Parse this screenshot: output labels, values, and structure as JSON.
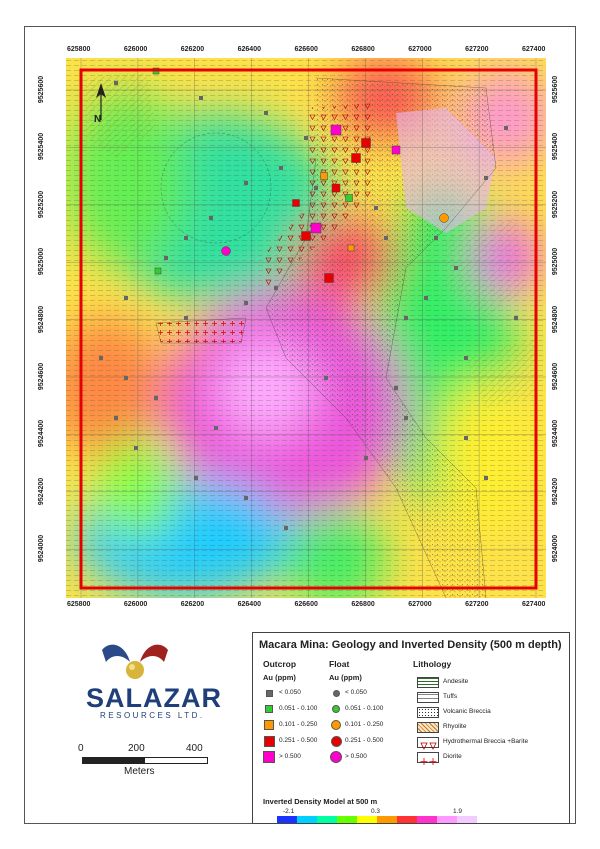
{
  "map": {
    "title": "Macara Mina: Geology and Inverted Density (500 m depth)",
    "x_ticks": [
      "625800",
      "626000",
      "626200",
      "626400",
      "626600",
      "626800",
      "627000",
      "627200",
      "627400"
    ],
    "y_ticks": [
      "9525600",
      "9525400",
      "9525200",
      "9525000",
      "9524800",
      "9524600",
      "9524400",
      "9524200",
      "9524000"
    ],
    "north_label": "N",
    "scale_labels": [
      "0",
      "200",
      "400"
    ],
    "scale_unit": "Meters"
  },
  "logo": {
    "name": "SALAZAR",
    "subtitle": "RESOURCES LTD."
  },
  "legend": {
    "outcrop_header": "Outcrop",
    "float_header": "Float",
    "lithology_header": "Lithology",
    "au_unit": "Au (ppm)",
    "au_classes": [
      {
        "label": "< 0.050",
        "color": "#666666"
      },
      {
        "label": "0.051 - 0.100",
        "color": "#33cc33"
      },
      {
        "label": "0.101 - 0.250",
        "color": "#ff9900"
      },
      {
        "label": "0.251 - 0.500",
        "color": "#e60000"
      },
      {
        "label": "> 0.500",
        "color": "#ff00cc"
      }
    ],
    "lithology": [
      {
        "label": "Andesite"
      },
      {
        "label": "Tuffs"
      },
      {
        "label": "Volcanic Breccia"
      },
      {
        "label": "Rhyolite"
      },
      {
        "label": "Hydrothermal Breccia +Barite"
      },
      {
        "label": "Diorite"
      }
    ],
    "density_title": "Inverted Density Model at 500 m",
    "density_ticks": [
      "-2.1",
      "0.3",
      "1.9"
    ],
    "density_colors": [
      "#1a33ff",
      "#00d0ff",
      "#00ffa0",
      "#66ff00",
      "#ffff00",
      "#ff9900",
      "#ff3333",
      "#ff33cc",
      "#ff99ff",
      "#f2ccff"
    ]
  }
}
